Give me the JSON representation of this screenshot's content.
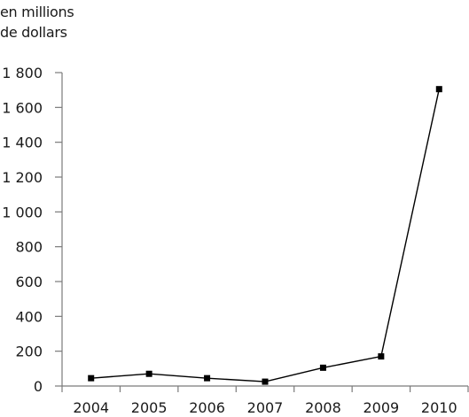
{
  "chart_data": {
    "type": "line",
    "title": "",
    "ylabel_lines": [
      "en millions",
      "de dollars"
    ],
    "xlabel": "",
    "categories": [
      "2004",
      "2005",
      "2006",
      "2007",
      "2008",
      "2009",
      "2010"
    ],
    "series": [
      {
        "values": [
          45,
          70,
          45,
          25,
          105,
          170,
          1705
        ],
        "color": "#000000",
        "marker": "square"
      }
    ],
    "ylim": [
      0,
      1800
    ],
    "yticks": [
      0,
      200,
      400,
      600,
      800,
      1000,
      1200,
      1400,
      1600,
      1800
    ],
    "ytick_labels": [
      "0",
      "200",
      "400",
      "600",
      "800",
      "1 000",
      "1 200",
      "1 400",
      "1 600",
      "1 800"
    ],
    "grid": false,
    "legend": "none"
  }
}
